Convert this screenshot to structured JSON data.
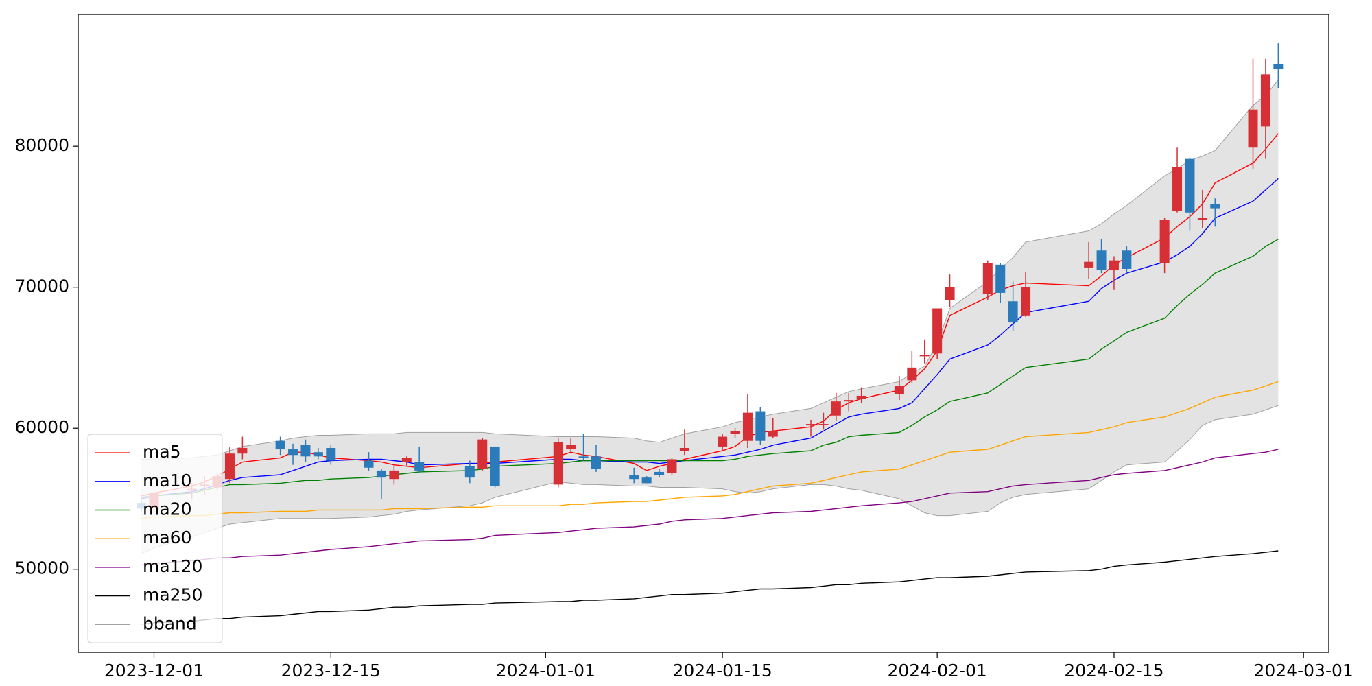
{
  "chart_data": {
    "type": "candlestick",
    "x": [
      "2023-11-30",
      "2023-12-01",
      "2023-12-04",
      "2023-12-05",
      "2023-12-06",
      "2023-12-07",
      "2023-12-08",
      "2023-12-11",
      "2023-12-12",
      "2023-12-13",
      "2023-12-14",
      "2023-12-15",
      "2023-12-18",
      "2023-12-19",
      "2023-12-20",
      "2023-12-21",
      "2023-12-22",
      "2023-12-26",
      "2023-12-27",
      "2023-12-28",
      "2024-01-02",
      "2024-01-03",
      "2024-01-04",
      "2024-01-05",
      "2024-01-08",
      "2024-01-09",
      "2024-01-10",
      "2024-01-11",
      "2024-01-12",
      "2024-01-15",
      "2024-01-16",
      "2024-01-17",
      "2024-01-18",
      "2024-01-19",
      "2024-01-22",
      "2024-01-23",
      "2024-01-24",
      "2024-01-25",
      "2024-01-26",
      "2024-01-29",
      "2024-01-30",
      "2024-01-31",
      "2024-02-01",
      "2024-02-02",
      "2024-02-05",
      "2024-02-06",
      "2024-02-07",
      "2024-02-08",
      "2024-02-13",
      "2024-02-14",
      "2024-02-15",
      "2024-02-16",
      "2024-02-19",
      "2024-02-20",
      "2024-02-21",
      "2024-02-22",
      "2024-02-23",
      "2024-02-26",
      "2024-02-27",
      "2024-02-28"
    ],
    "open": [
      54700,
      54300,
      55600,
      55900,
      55800,
      56400,
      58200,
      59100,
      58500,
      58800,
      58300,
      58600,
      57700,
      57000,
      56400,
      57600,
      57600,
      57300,
      57100,
      58700,
      56000,
      58500,
      58000,
      58000,
      56700,
      56500,
      56900,
      56800,
      58400,
      58700,
      59600,
      59100,
      61200,
      59400,
      60200,
      60300,
      60900,
      61900,
      62100,
      62400,
      63400,
      65100,
      65300,
      69100,
      69500,
      71600,
      69000,
      68000,
      71400,
      72600,
      71200,
      72600,
      71700,
      75400,
      79100,
      74800,
      75900,
      79900,
      81400,
      85800
    ],
    "high": [
      54900,
      55500,
      56100,
      56600,
      56800,
      58700,
      59400,
      59400,
      58900,
      59200,
      58600,
      58800,
      58300,
      57100,
      57400,
      58000,
      58700,
      57700,
      59300,
      58700,
      59300,
      59300,
      59600,
      58800,
      57200,
      56600,
      57100,
      57900,
      59900,
      59600,
      60000,
      62400,
      61500,
      60700,
      60600,
      61100,
      62500,
      62500,
      62900,
      63700,
      65500,
      66300,
      68500,
      70900,
      71900,
      71700,
      70400,
      71100,
      73200,
      73400,
      72200,
      72900,
      74900,
      79900,
      79200,
      76900,
      76300,
      86200,
      86200,
      87300
    ],
    "low": [
      54100,
      54000,
      55000,
      55300,
      55600,
      56100,
      57800,
      58100,
      57400,
      57600,
      57800,
      57400,
      57000,
      55000,
      56000,
      57300,
      56800,
      56100,
      57000,
      55800,
      55800,
      58300,
      57700,
      56900,
      56100,
      56100,
      56500,
      56700,
      58100,
      58400,
      59300,
      58600,
      58800,
      59300,
      59400,
      59900,
      60500,
      61200,
      61800,
      62000,
      63200,
      64600,
      64900,
      68600,
      69100,
      68900,
      66900,
      67900,
      70600,
      71000,
      69800,
      71000,
      71000,
      75300,
      74000,
      74200,
      74300,
      78400,
      79100,
      84100
    ],
    "close": [
      54300,
      55400,
      55700,
      56000,
      56600,
      58200,
      58600,
      58500,
      58100,
      58000,
      58000,
      57700,
      57200,
      56500,
      57000,
      57900,
      57000,
      56500,
      59200,
      55900,
      59000,
      58800,
      57900,
      57100,
      56400,
      56100,
      56700,
      57800,
      58600,
      59400,
      59800,
      61100,
      59100,
      59800,
      60300,
      60300,
      61900,
      62000,
      62300,
      63000,
      64300,
      65200,
      68500,
      70000,
      71700,
      69600,
      67500,
      70000,
      71800,
      71200,
      71900,
      71300,
      74800,
      78500,
      75300,
      74900,
      75600,
      82600,
      85100,
      85500
    ],
    "up_color": "#d62f36",
    "down_color": "#2b7bba",
    "series": [
      {
        "name": "ma5",
        "color": "red",
        "values": [
          55200,
          55400,
          55900,
          56200,
          56600,
          57100,
          57600,
          57900,
          58300,
          58300,
          58100,
          57900,
          57700,
          57600,
          57400,
          57300,
          57200,
          57500,
          57500,
          57600,
          58000,
          58300,
          58100,
          58000,
          57500,
          57000,
          57300,
          57500,
          57800,
          58400,
          58700,
          59400,
          59700,
          59800,
          60100,
          60500,
          61300,
          61800,
          62100,
          62700,
          63400,
          64200,
          65500,
          68000,
          69300,
          69800,
          70100,
          70300,
          70100,
          70800,
          71600,
          72100,
          73500,
          74300,
          75000,
          75900,
          77400,
          78800,
          79800,
          80900
        ]
      },
      {
        "name": "ma10",
        "color": "blue",
        "values": [
          55000,
          55200,
          55500,
          55700,
          56000,
          56300,
          56500,
          56700,
          57000,
          57300,
          57600,
          57700,
          57800,
          57800,
          57700,
          57600,
          57400,
          57500,
          57500,
          57500,
          57800,
          57800,
          57700,
          57700,
          57600,
          57600,
          57500,
          57600,
          57700,
          58000,
          58100,
          58300,
          58500,
          58800,
          59300,
          59800,
          60300,
          60800,
          61000,
          61400,
          61800,
          62800,
          63800,
          64900,
          65900,
          66600,
          67400,
          68200,
          69000,
          69900,
          70500,
          71000,
          71800,
          72300,
          72900,
          73800,
          74900,
          76100,
          76900,
          77700
        ]
      },
      {
        "name": "ma20",
        "color": "green",
        "values": [
          55100,
          55200,
          55400,
          55600,
          55800,
          56000,
          56000,
          56100,
          56200,
          56300,
          56300,
          56400,
          56500,
          56600,
          56700,
          56800,
          56900,
          57000,
          57100,
          57300,
          57500,
          57600,
          57700,
          57700,
          57700,
          57700,
          57700,
          57700,
          57700,
          57700,
          57800,
          58000,
          58100,
          58200,
          58400,
          58800,
          59000,
          59400,
          59500,
          59700,
          60200,
          60800,
          61300,
          61900,
          62500,
          63100,
          63700,
          64300,
          64900,
          65600,
          66200,
          66800,
          67800,
          68700,
          69500,
          70200,
          71000,
          72200,
          72900,
          73400
        ]
      },
      {
        "name": "ma60",
        "color": "orange",
        "values": [
          53600,
          53700,
          53800,
          53800,
          53900,
          54000,
          54000,
          54100,
          54100,
          54100,
          54200,
          54200,
          54200,
          54200,
          54300,
          54300,
          54300,
          54400,
          54400,
          54500,
          54500,
          54600,
          54600,
          54700,
          54800,
          54800,
          54900,
          55000,
          55100,
          55200,
          55300,
          55500,
          55700,
          55900,
          56100,
          56300,
          56500,
          56700,
          56900,
          57100,
          57400,
          57700,
          58000,
          58300,
          58500,
          58800,
          59100,
          59400,
          59700,
          59900,
          60100,
          60400,
          60800,
          61100,
          61400,
          61800,
          62200,
          62700,
          63000,
          63300
        ]
      },
      {
        "name": "ma120",
        "color": "purple",
        "values": [
          50300,
          50400,
          50600,
          50700,
          50800,
          50800,
          50900,
          51000,
          51100,
          51200,
          51300,
          51400,
          51600,
          51700,
          51800,
          51900,
          52000,
          52100,
          52200,
          52400,
          52600,
          52700,
          52800,
          52900,
          53000,
          53100,
          53200,
          53400,
          53500,
          53600,
          53700,
          53800,
          53900,
          54000,
          54100,
          54200,
          54300,
          54400,
          54500,
          54700,
          54800,
          55000,
          55200,
          55400,
          55500,
          55700,
          55900,
          56000,
          56300,
          56500,
          56700,
          56800,
          57000,
          57200,
          57400,
          57600,
          57900,
          58200,
          58300,
          58500
        ]
      },
      {
        "name": "ma250",
        "color": "black",
        "values": [
          46100,
          46200,
          46300,
          46400,
          46500,
          46500,
          46600,
          46700,
          46800,
          46900,
          47000,
          47000,
          47100,
          47200,
          47300,
          47300,
          47400,
          47500,
          47500,
          47600,
          47700,
          47700,
          47800,
          47800,
          47900,
          48000,
          48100,
          48200,
          48200,
          48300,
          48400,
          48500,
          48600,
          48600,
          48700,
          48800,
          48900,
          48900,
          49000,
          49100,
          49200,
          49300,
          49400,
          49400,
          49500,
          49600,
          49700,
          49800,
          49900,
          50000,
          50200,
          50300,
          50500,
          50600,
          50700,
          50800,
          50900,
          51100,
          51200,
          51300
        ]
      }
    ],
    "bband": {
      "name": "bband",
      "color": "#a0a0a0",
      "fill": "#e3e3e3",
      "upper": [
        57800,
        57800,
        57900,
        58000,
        58100,
        58400,
        58700,
        59100,
        59300,
        59400,
        59500,
        59500,
        59600,
        59600,
        59600,
        59700,
        59700,
        59700,
        59700,
        59600,
        59400,
        59400,
        59400,
        59400,
        59300,
        59100,
        59000,
        59300,
        59600,
        60100,
        60400,
        60600,
        60800,
        61000,
        61400,
        61800,
        62200,
        62600,
        62800,
        63300,
        63900,
        64400,
        66000,
        68500,
        70400,
        71300,
        72100,
        73200,
        74000,
        74500,
        75200,
        75800,
        77900,
        78400,
        79000,
        79300,
        79700,
        82900,
        83600,
        84700
      ],
      "lower": [
        51100,
        51500,
        52300,
        52600,
        52900,
        53200,
        53300,
        53600,
        53600,
        53600,
        53600,
        53600,
        53700,
        53800,
        53900,
        54100,
        54200,
        54500,
        54700,
        55100,
        56200,
        56100,
        56000,
        56000,
        55900,
        55900,
        55800,
        55800,
        55800,
        55700,
        55500,
        55400,
        55500,
        55700,
        56000,
        56000,
        55900,
        55700,
        55600,
        55000,
        54500,
        54000,
        53800,
        53800,
        54100,
        54700,
        55100,
        55300,
        55700,
        56300,
        56900,
        57400,
        57600,
        58400,
        59200,
        60200,
        60600,
        61000,
        61300,
        61600
      ]
    },
    "xlim": [
      "2023-11-25",
      "2024-03-03"
    ],
    "xticks": [
      "2023-12-01",
      "2023-12-15",
      "2024-01-01",
      "2024-01-15",
      "2024-02-01",
      "2024-02-15",
      "2024-03-01"
    ],
    "ylim": [
      44100,
      89350
    ],
    "yticks": [
      50000,
      60000,
      70000,
      80000
    ],
    "grid": false,
    "legend": "lower left"
  }
}
